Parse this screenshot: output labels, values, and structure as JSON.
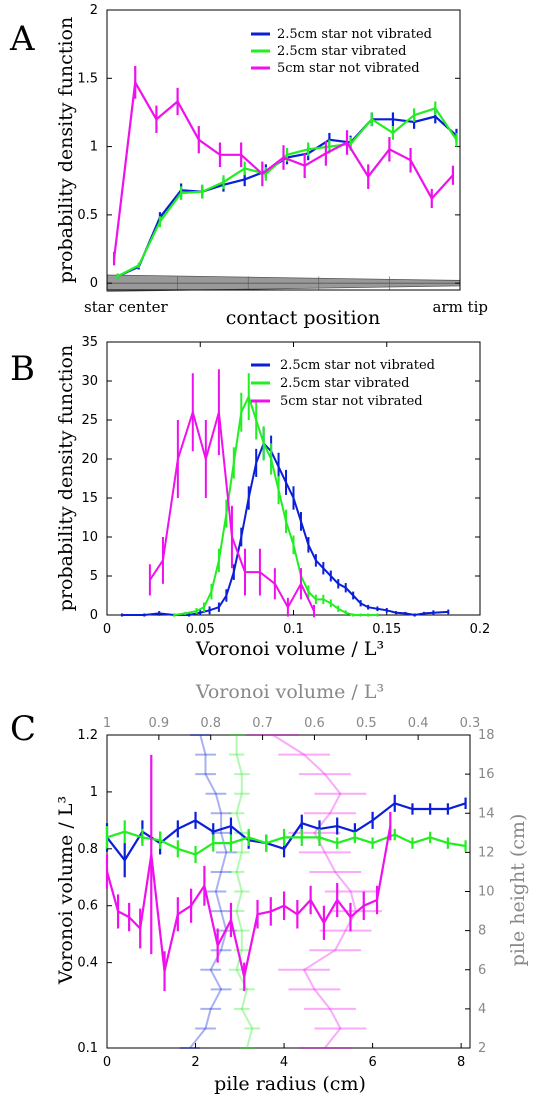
{
  "colors": {
    "blue": "#0a1fd6",
    "green": "#22ee22",
    "magenta": "#ee11ee",
    "gray": "#888888",
    "wedge": "#999999"
  },
  "chart_data": [
    {
      "panel": "A",
      "type": "line",
      "xlabel": "contact position",
      "ylabel": "probability density function",
      "x_tick_labels": {
        "left": "star center",
        "right": "arm tip"
      },
      "xlim": [
        0,
        1
      ],
      "ylim": [
        -0.05,
        2
      ],
      "yticks": [
        0,
        0.5,
        1,
        1.5,
        2
      ],
      "ytick_labels": [
        "0",
        "0.5",
        "1",
        "1.5",
        "2"
      ],
      "legend": "top-right",
      "series": [
        {
          "name": "2.5cm star not vibrated",
          "color": "blue",
          "x": [
            0.03,
            0.09,
            0.15,
            0.21,
            0.27,
            0.33,
            0.39,
            0.45,
            0.51,
            0.57,
            0.63,
            0.69,
            0.75,
            0.81,
            0.87,
            0.93,
            0.99
          ],
          "y": [
            0.05,
            0.12,
            0.48,
            0.68,
            0.67,
            0.72,
            0.76,
            0.82,
            0.92,
            0.95,
            1.05,
            1.03,
            1.2,
            1.2,
            1.18,
            1.22,
            1.08
          ],
          "err": [
            0.02,
            0.02,
            0.04,
            0.05,
            0.05,
            0.05,
            0.05,
            0.05,
            0.05,
            0.05,
            0.05,
            0.05,
            0.05,
            0.05,
            0.05,
            0.05,
            0.05
          ]
        },
        {
          "name": "2.5cm star vibrated",
          "color": "green",
          "x": [
            0.03,
            0.09,
            0.15,
            0.21,
            0.27,
            0.33,
            0.39,
            0.45,
            0.51,
            0.57,
            0.63,
            0.69,
            0.75,
            0.81,
            0.87,
            0.93,
            0.99
          ],
          "y": [
            0.05,
            0.13,
            0.45,
            0.66,
            0.67,
            0.74,
            0.84,
            0.8,
            0.94,
            0.98,
            1.0,
            1.02,
            1.2,
            1.1,
            1.23,
            1.28,
            1.05
          ],
          "err": [
            0.02,
            0.02,
            0.04,
            0.05,
            0.05,
            0.05,
            0.05,
            0.05,
            0.05,
            0.05,
            0.05,
            0.05,
            0.05,
            0.05,
            0.05,
            0.05,
            0.05
          ]
        },
        {
          "name": "5cm star not vibrated",
          "color": "magenta",
          "x": [
            0.02,
            0.08,
            0.14,
            0.2,
            0.26,
            0.32,
            0.38,
            0.44,
            0.5,
            0.56,
            0.62,
            0.68,
            0.74,
            0.8,
            0.86,
            0.92,
            0.98
          ],
          "y": [
            0.18,
            1.47,
            1.2,
            1.33,
            1.05,
            0.94,
            0.94,
            0.8,
            0.92,
            0.86,
            0.95,
            1.03,
            0.78,
            0.98,
            0.9,
            0.62,
            0.79
          ],
          "err": [
            0.05,
            0.12,
            0.1,
            0.1,
            0.1,
            0.09,
            0.09,
            0.09,
            0.09,
            0.09,
            0.09,
            0.09,
            0.09,
            0.09,
            0.09,
            0.07,
            0.07
          ]
        }
      ]
    },
    {
      "panel": "B",
      "type": "line",
      "xlabel": "Voronoi volume / L³",
      "ylabel": "probability density function",
      "xlim": [
        0,
        0.2
      ],
      "ylim": [
        0,
        35
      ],
      "xticks": [
        0,
        0.05,
        0.1,
        0.15,
        0.2
      ],
      "xtick_labels": [
        "0",
        "0.05",
        "0.1",
        "0.15",
        "0.2"
      ],
      "yticks": [
        0,
        5,
        10,
        15,
        20,
        25,
        30,
        35
      ],
      "ytick_labels": [
        "0",
        "5",
        "10",
        "15",
        "20",
        "25",
        "30",
        "35"
      ],
      "legend": "top-right",
      "series": [
        {
          "name": "2.5cm star not vibrated",
          "color": "blue",
          "x": [
            0.008,
            0.02,
            0.028,
            0.036,
            0.044,
            0.05,
            0.055,
            0.06,
            0.064,
            0.068,
            0.072,
            0.076,
            0.08,
            0.084,
            0.088,
            0.092,
            0.096,
            0.1,
            0.104,
            0.108,
            0.112,
            0.116,
            0.12,
            0.124,
            0.128,
            0.132,
            0.136,
            0.14,
            0.145,
            0.15,
            0.155,
            0.16,
            0.165,
            0.17,
            0.175,
            0.183
          ],
          "y": [
            0,
            0,
            0.2,
            0,
            0,
            0.3,
            0.6,
            1,
            2.5,
            5.5,
            10,
            15,
            19.5,
            22,
            21,
            19,
            17,
            15,
            12,
            9,
            7,
            6,
            5,
            4,
            3.5,
            2.5,
            1.5,
            1,
            0.8,
            0.6,
            0.3,
            0.2,
            0,
            0.2,
            0.3,
            0.4
          ],
          "err": [
            0.2,
            0.2,
            0.3,
            0.2,
            0.2,
            0.3,
            0.5,
            0.6,
            0.8,
            1,
            1.2,
            1.5,
            1.8,
            2,
            2,
            1.8,
            1.6,
            1.5,
            1.2,
            1,
            0.8,
            0.8,
            0.7,
            0.6,
            0.6,
            0.5,
            0.4,
            0.3,
            0.3,
            0.3,
            0.2,
            0.2,
            0.2,
            0.2,
            0.3,
            0.3
          ]
        },
        {
          "name": "2.5cm star vibrated",
          "color": "green",
          "x": [
            0.036,
            0.042,
            0.048,
            0.052,
            0.056,
            0.06,
            0.064,
            0.068,
            0.072,
            0.076,
            0.08,
            0.084,
            0.088,
            0.092,
            0.096,
            0.1,
            0.104,
            0.108,
            0.112,
            0.116,
            0.12,
            0.124,
            0.128,
            0.132,
            0.136,
            0.14,
            0.145
          ],
          "y": [
            0,
            0.2,
            0.5,
            1,
            3,
            7,
            13,
            19.5,
            26,
            28,
            25,
            22,
            20,
            16,
            12,
            9,
            5,
            3,
            2,
            2,
            1.5,
            0.8,
            0.3,
            0,
            0,
            0,
            0
          ],
          "err": [
            0.2,
            0.2,
            0.4,
            0.6,
            1,
            1.5,
            1.8,
            2,
            2.5,
            3,
            2.5,
            2.2,
            2,
            1.8,
            1.5,
            1.2,
            1,
            0.8,
            0.6,
            0.6,
            0.5,
            0.4,
            0.3,
            0.2,
            0.2,
            0.2,
            0.2
          ]
        },
        {
          "name": "5cm star not vibrated",
          "color": "magenta",
          "x": [
            0.023,
            0.03,
            0.038,
            0.046,
            0.053,
            0.06,
            0.067,
            0.074,
            0.082,
            0.09,
            0.097,
            0.104,
            0.111
          ],
          "y": [
            4.5,
            7,
            20,
            26,
            20,
            26,
            10,
            5.5,
            5.5,
            4,
            1,
            4,
            0.5
          ],
          "err": [
            2,
            3,
            5,
            5,
            5,
            5.5,
            4,
            3,
            3,
            2,
            1.2,
            2,
            0.8
          ]
        }
      ]
    },
    {
      "panel": "C",
      "type": "line",
      "xlabel": "pile radius (cm)",
      "ylabel": "Voronoi volume / L³",
      "top_xlabel": "Voronoi volume / L³",
      "right_ylabel": "pile height (cm)",
      "xlim": [
        0,
        8.2
      ],
      "ylim": [
        0.1,
        1.2
      ],
      "xticks": [
        0,
        2,
        4,
        6,
        8
      ],
      "xtick_labels": [
        "0",
        "2",
        "4",
        "6",
        "8"
      ],
      "yticks": [
        0.1,
        0.4,
        0.6,
        0.8,
        1,
        1.2
      ],
      "ytick_labels": [
        "0.1",
        "0.4",
        "0.6",
        "0.8",
        "1",
        "1.2"
      ],
      "top_xticks": [
        1,
        0.9,
        0.8,
        0.7,
        0.6,
        0.5,
        0.4,
        0.3
      ],
      "top_xtick_labels": [
        "1",
        "0.9",
        "0.8",
        "0.7",
        "0.6",
        "0.5",
        "0.4",
        "0.3"
      ],
      "right_yticks": [
        2,
        4,
        6,
        8,
        10,
        12,
        14,
        16,
        18
      ],
      "right_ytick_labels": [
        "2",
        "4",
        "6",
        "8",
        "10",
        "12",
        "14",
        "16",
        "18"
      ],
      "series": [
        {
          "color": "blue",
          "x": [
            0,
            0.4,
            0.8,
            1.2,
            1.6,
            2.0,
            2.4,
            2.8,
            3.2,
            3.6,
            4.0,
            4.4,
            4.8,
            5.2,
            5.6,
            6.0,
            6.5,
            6.9,
            7.3,
            7.7,
            8.1
          ],
          "y": [
            0.84,
            0.76,
            0.86,
            0.82,
            0.87,
            0.9,
            0.86,
            0.88,
            0.83,
            0.82,
            0.8,
            0.89,
            0.87,
            0.88,
            0.86,
            0.9,
            0.96,
            0.94,
            0.94,
            0.94,
            0.96
          ],
          "err": [
            0.05,
            0.06,
            0.04,
            0.04,
            0.03,
            0.03,
            0.03,
            0.03,
            0.03,
            0.03,
            0.03,
            0.03,
            0.03,
            0.03,
            0.03,
            0.03,
            0.03,
            0.02,
            0.02,
            0.02,
            0.02
          ]
        },
        {
          "color": "green",
          "x": [
            0,
            0.4,
            0.8,
            1.2,
            1.6,
            2.0,
            2.4,
            2.8,
            3.2,
            3.6,
            4.0,
            4.4,
            4.8,
            5.2,
            5.6,
            6.0,
            6.5,
            6.9,
            7.3,
            7.7,
            8.1
          ],
          "y": [
            0.84,
            0.86,
            0.84,
            0.83,
            0.8,
            0.78,
            0.82,
            0.82,
            0.84,
            0.82,
            0.84,
            0.84,
            0.84,
            0.82,
            0.84,
            0.82,
            0.85,
            0.82,
            0.84,
            0.82,
            0.81
          ],
          "err": [
            0.04,
            0.04,
            0.03,
            0.03,
            0.03,
            0.03,
            0.03,
            0.03,
            0.03,
            0.03,
            0.03,
            0.03,
            0.03,
            0.02,
            0.02,
            0.02,
            0.02,
            0.02,
            0.02,
            0.02,
            0.02
          ]
        },
        {
          "color": "magenta",
          "x": [
            0,
            0.25,
            0.5,
            0.75,
            1.0,
            1.3,
            1.6,
            1.9,
            2.2,
            2.5,
            2.8,
            3.1,
            3.4,
            3.7,
            4.0,
            4.3,
            4.6,
            4.9,
            5.2,
            5.5,
            5.8,
            6.1,
            6.4
          ],
          "y": [
            0.72,
            0.58,
            0.56,
            0.52,
            0.78,
            0.37,
            0.57,
            0.6,
            0.67,
            0.46,
            0.55,
            0.35,
            0.57,
            0.58,
            0.6,
            0.57,
            0.62,
            0.54,
            0.62,
            0.56,
            0.6,
            0.62,
            0.88
          ],
          "err": [
            0.06,
            0.06,
            0.05,
            0.07,
            0.35,
            0.07,
            0.06,
            0.06,
            0.07,
            0.06,
            0.06,
            0.05,
            0.05,
            0.05,
            0.05,
            0.05,
            0.05,
            0.06,
            0.06,
            0.05,
            0.05,
            0.05,
            0.05
          ]
        },
        {
          "color": "blue",
          "faded": true,
          "xv": [
            0.84,
            0.81,
            0.8,
            0.78,
            0.8,
            0.78,
            0.77,
            0.78,
            0.79,
            0.78,
            0.77,
            0.78,
            0.78,
            0.79,
            0.81,
            0.81,
            0.82
          ],
          "height": [
            2,
            3,
            4,
            5,
            6,
            7,
            8,
            9,
            10,
            11,
            12,
            13,
            14,
            15,
            16,
            17,
            18
          ],
          "err": [
            0.02,
            0.02,
            0.02,
            0.02,
            0.02,
            0.02,
            0.02,
            0.02,
            0.02,
            0.02,
            0.02,
            0.02,
            0.02,
            0.02,
            0.02,
            0.02,
            0.02
          ]
        },
        {
          "color": "green",
          "faded": true,
          "xv": [
            0.73,
            0.72,
            0.74,
            0.73,
            0.75,
            0.74,
            0.74,
            0.75,
            0.74,
            0.75,
            0.74,
            0.74,
            0.75,
            0.74,
            0.74,
            0.75,
            0.75
          ],
          "height": [
            2,
            3,
            4,
            5,
            6,
            7,
            8,
            9,
            10,
            11,
            12,
            13,
            14,
            15,
            16,
            17,
            18
          ],
          "err": [
            0.015,
            0.015,
            0.015,
            0.015,
            0.015,
            0.015,
            0.015,
            0.015,
            0.015,
            0.015,
            0.015,
            0.015,
            0.015,
            0.015,
            0.015,
            0.015,
            0.015
          ]
        },
        {
          "color": "magenta",
          "faded": true,
          "xv": [
            0.58,
            0.55,
            0.57,
            0.6,
            0.62,
            0.56,
            0.54,
            0.52,
            0.53,
            0.56,
            0.58,
            0.6,
            0.57,
            0.55,
            0.58,
            0.62,
            0.68
          ],
          "height": [
            2,
            3,
            4,
            5,
            6,
            7,
            8,
            9,
            10,
            11,
            12,
            13,
            14,
            15,
            16,
            17,
            18
          ],
          "err": [
            0.05,
            0.05,
            0.05,
            0.05,
            0.05,
            0.05,
            0.05,
            0.05,
            0.05,
            0.05,
            0.05,
            0.05,
            0.05,
            0.05,
            0.05,
            0.05,
            0.05
          ]
        }
      ]
    }
  ]
}
